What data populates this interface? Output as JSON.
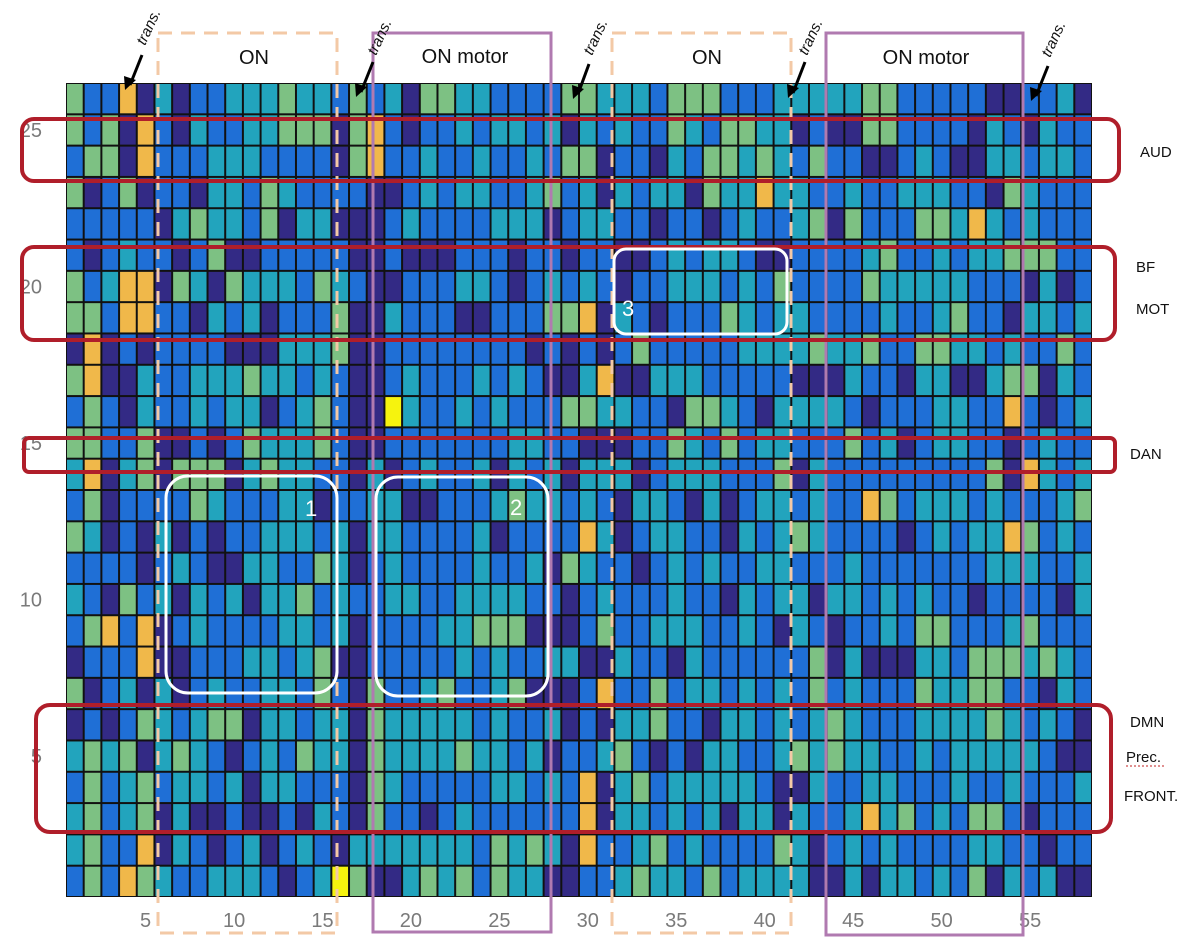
{
  "chart_data": {
    "type": "heatmap",
    "title": "",
    "xlabel": "",
    "ylabel": "",
    "cols": 58,
    "rows": 26,
    "x_range": [
      1,
      58
    ],
    "y_range": [
      1,
      26
    ],
    "x_ticks": [
      5,
      10,
      15,
      20,
      25,
      30,
      35,
      40,
      45,
      50,
      55
    ],
    "y_ticks": [
      5,
      10,
      15,
      20,
      25
    ],
    "grid": true,
    "colors": {
      "0": "#332a85",
      "1": "#1f6fd6",
      "2": "#22a4bd",
      "3": "#7dc183",
      "4": "#f0b84a",
      "5": "#f6f30e",
      "grid": "#111111"
    },
    "data_note_rows_top_to_bottom": "states per row, row 26 (top) to row 1 (bottom)",
    "matrix": [
      "3114020112223221312033221111332221333111222223311111001120",
      "3130410211223330341011212212021211321332201003311110210211",
      "1330411122211110341121121121330110213323213110012100221221",
      "3013011022132111100121221123120212203224221121122211032111",
      "1111102322130220001211112220122110110121123031113324212111",
      "1012110130011111001000111011011001212210011112311212233311",
      "3124403203222132100111221012121011222121311113222221110201",
      "3314411021201113002111001113340210111321221111211231102212",
      "0401011110002223001111111101010131111122223223113322121131",
      "3400211222322121001211121210024002221111100021102200233021",
      "1310211212201231005211212111332211033210222210111221141012",
      "3311300101322231001111111221100011321312211131201221101211",
      "2402303330232211020121120212022201222111302111111111304212",
      "1301111321112201122001112322121022102012212114312221211123",
      "3201020101122212022111120111142012211021232111101212243121",
      "1111012100221132012111121120321101212112211121111111222112",
      "2103120212022312112211222211012111211021220221212110111102",
      "1341401211112212011112233300013112221121021011213311123111",
      "0111400111221230011111212112200211021111113020002213332321",
      "3012020121122131031123112300014113122121213121113223311021",
      "0101321233022122032222212112010223110221212321112222321210",
      "2323023210121322032222322120112310102211232322112122222100",
      "1312312212022111032111112212140231222221002112211121121112",
      "2312302001001021031101211111140221212022021124231213310111",
      "2311402101201210222222213232041123121111320121211112211011",
      "1314321122210125300232313220011232213122220020221213021200"
    ]
  },
  "phases": {
    "trans_label": "trans.",
    "on_label": "ON",
    "on_motor_label": "ON motor"
  },
  "networks": {
    "aud": "AUD",
    "bf": "BF",
    "mot": "MOT",
    "dan": "DAN",
    "dmn": "DMN",
    "prec": "Prec.",
    "front": "FRONT."
  },
  "highlight_boxes": {
    "box1": "1",
    "box2": "2",
    "box3": "3"
  },
  "overlay_colors": {
    "network_box": "#b01e2a",
    "on_box": "#f3c9a6",
    "on_motor_box": "#b07ab0",
    "highlight_box": "#ffffff"
  }
}
